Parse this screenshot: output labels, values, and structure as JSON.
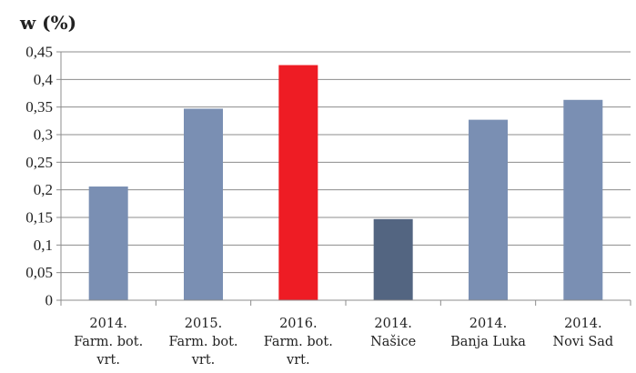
{
  "chart_data": {
    "type": "bar",
    "title": "",
    "ylabel": "w (%)",
    "xlabel": "",
    "ylim": [
      0,
      0.45
    ],
    "yticks": [
      "0",
      "0,05",
      "0,1",
      "0,15",
      "0,2",
      "0,25",
      "0,3",
      "0,35",
      "0,4",
      "0,45"
    ],
    "grid": true,
    "categories": [
      [
        "2014.",
        "Farm. bot.",
        "vrt."
      ],
      [
        "2015.",
        "Farm. bot.",
        "vrt."
      ],
      [
        "2016.",
        "Farm. bot.",
        "vrt."
      ],
      [
        "2014.",
        "Našice"
      ],
      [
        "2014.",
        "Banja Luka"
      ],
      [
        "2014.",
        "Novi Sad"
      ]
    ],
    "values": [
      0.206,
      0.347,
      0.426,
      0.147,
      0.327,
      0.363
    ],
    "colors": [
      "#7a8fb3",
      "#7a8fb3",
      "#ee1c24",
      "#536581",
      "#7a8fb3",
      "#7a8fb3"
    ]
  }
}
